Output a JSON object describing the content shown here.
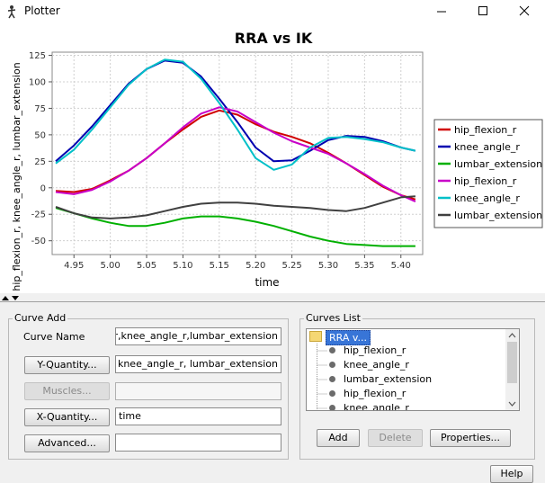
{
  "window": {
    "title": "Plotter",
    "icons": {
      "app": "opensim-figure-icon",
      "minimize": "minimize-icon",
      "maximize": "maximize-icon",
      "close": "close-icon"
    }
  },
  "chart_data": {
    "type": "line",
    "title": "RRA vs IK",
    "xlabel": "time",
    "ylabel": "hip_flexion_r, knee_angle_r, lumbar_extension",
    "xlim": [
      4.92,
      5.43
    ],
    "ylim": [
      -63,
      128
    ],
    "xticks": [
      "4.95",
      "5.00",
      "5.05",
      "5.10",
      "5.15",
      "5.20",
      "5.25",
      "5.30",
      "5.35",
      "5.40"
    ],
    "xtick_values": [
      4.95,
      5.0,
      5.05,
      5.1,
      5.15,
      5.2,
      5.25,
      5.3,
      5.35,
      5.4
    ],
    "yticks": [
      "125",
      "100",
      "75",
      "50",
      "25",
      "0",
      "-25",
      "-50"
    ],
    "ytick_values": [
      125,
      100,
      75,
      50,
      25,
      0,
      -25,
      -50
    ],
    "grid": true,
    "legend_position": "right",
    "series": [
      {
        "name": "hip_flexion_r",
        "color": "#d00000",
        "x": [
          4.925,
          4.95,
          4.975,
          5.0,
          5.025,
          5.05,
          5.075,
          5.1,
          5.125,
          5.15,
          5.175,
          5.2,
          5.225,
          5.25,
          5.275,
          5.3,
          5.325,
          5.35,
          5.375,
          5.4,
          5.42
        ],
        "y": [
          -3,
          -4,
          -1,
          7,
          16,
          28,
          42,
          55,
          67,
          73,
          69,
          60,
          53,
          48,
          42,
          33,
          23,
          12,
          1,
          -7,
          -11
        ]
      },
      {
        "name": "knee_angle_r",
        "color": "#0000b0",
        "x": [
          4.925,
          4.95,
          4.975,
          5.0,
          5.025,
          5.05,
          5.075,
          5.1,
          5.125,
          5.15,
          5.175,
          5.2,
          5.225,
          5.25,
          5.275,
          5.3,
          5.325,
          5.35,
          5.375,
          5.4,
          5.42
        ],
        "y": [
          25,
          40,
          58,
          78,
          98,
          112,
          120,
          118,
          105,
          84,
          62,
          38,
          25,
          26,
          35,
          45,
          49,
          48,
          44,
          38,
          35
        ]
      },
      {
        "name": "lumbar_extension",
        "color": "#00b000",
        "x": [
          4.925,
          4.95,
          4.975,
          5.0,
          5.025,
          5.05,
          5.075,
          5.1,
          5.125,
          5.15,
          5.175,
          5.2,
          5.225,
          5.25,
          5.275,
          5.3,
          5.325,
          5.35,
          5.375,
          5.4,
          5.42
        ],
        "y": [
          -19,
          -24,
          -29,
          -33,
          -36,
          -36,
          -33,
          -29,
          -27,
          -27,
          -29,
          -32,
          -36,
          -41,
          -46,
          -50,
          -53,
          -54,
          -55,
          -55,
          -55
        ]
      },
      {
        "name": "hip_flexion_r",
        "color": "#c800c8",
        "x": [
          4.925,
          4.95,
          4.975,
          5.0,
          5.025,
          5.05,
          5.075,
          5.1,
          5.125,
          5.15,
          5.175,
          5.2,
          5.225,
          5.25,
          5.275,
          5.3,
          5.325,
          5.35,
          5.375,
          5.4,
          5.42
        ],
        "y": [
          -4,
          -6,
          -2,
          6,
          16,
          28,
          42,
          57,
          70,
          76,
          72,
          62,
          52,
          44,
          38,
          32,
          23,
          13,
          2,
          -7,
          -13
        ]
      },
      {
        "name": "knee_angle_r",
        "color": "#00c0c8",
        "x": [
          4.925,
          4.95,
          4.975,
          5.0,
          5.025,
          5.05,
          5.075,
          5.1,
          5.125,
          5.15,
          5.175,
          5.2,
          5.225,
          5.25,
          5.275,
          5.3,
          5.325,
          5.35,
          5.375,
          5.4,
          5.42
        ],
        "y": [
          23,
          36,
          55,
          76,
          97,
          112,
          121,
          119,
          103,
          80,
          55,
          28,
          17,
          22,
          38,
          47,
          48,
          46,
          43,
          38,
          35
        ]
      },
      {
        "name": "lumbar_extension",
        "color": "#404040",
        "x": [
          4.925,
          4.95,
          4.975,
          5.0,
          5.025,
          5.05,
          5.075,
          5.1,
          5.125,
          5.15,
          5.175,
          5.2,
          5.225,
          5.25,
          5.275,
          5.3,
          5.325,
          5.35,
          5.375,
          5.4,
          5.42
        ],
        "y": [
          -18,
          -24,
          -28,
          -29,
          -28,
          -26,
          -22,
          -18,
          -15,
          -14,
          -14,
          -15,
          -17,
          -18,
          -19,
          -21,
          -22,
          -19,
          -14,
          -9,
          -8
        ]
      }
    ]
  },
  "curve_add": {
    "group_title": "Curve Add",
    "curve_name_label": "Curve Name",
    "curve_name_value": "hip_flexion_r,knee_angle_r,lumbar_extension",
    "y_quantity_button": "Y-Quantity...",
    "y_quantity_value": "hip_flexion_r, knee_angle_r, lumbar_extension",
    "muscles_button": "Muscles...",
    "muscles_value": "",
    "x_quantity_button": "X-Quantity...",
    "x_quantity_value": "time",
    "advanced_button": "Advanced...",
    "advanced_value": ""
  },
  "curves_list": {
    "group_title": "Curves List",
    "root_label": "RRA v...",
    "items": [
      "hip_flexion_r",
      "knee_angle_r",
      "lumbar_extension",
      "hip_flexion_r",
      "knee_angle_r"
    ],
    "add_button": "Add",
    "delete_button": "Delete",
    "properties_button": "Properties..."
  },
  "footer": {
    "help_button": "Help"
  }
}
